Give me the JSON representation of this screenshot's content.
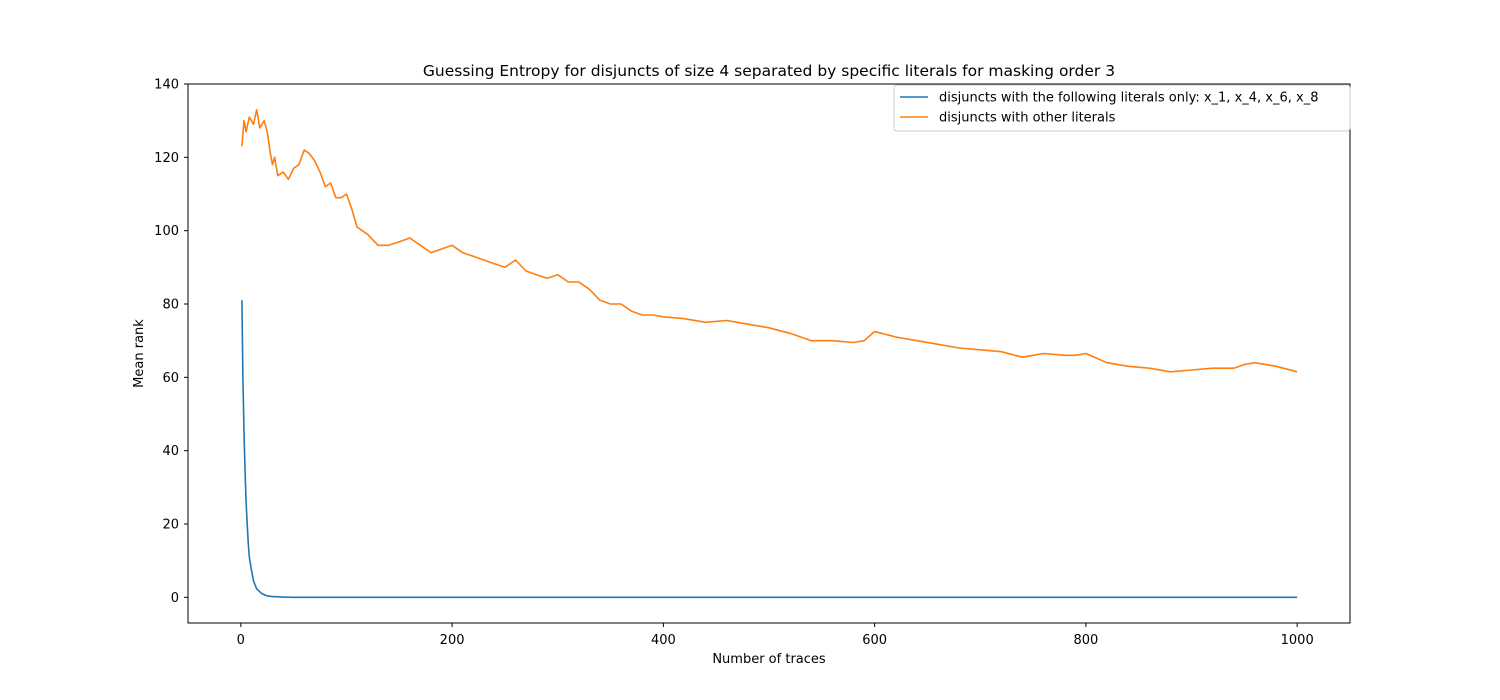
{
  "chart_data": {
    "type": "line",
    "title": "Guessing Entropy for disjuncts of size 4 separated by specific literals for masking order 3",
    "xlabel": "Number of traces",
    "ylabel": "Mean rank",
    "xlim": [
      -50,
      1050
    ],
    "ylim": [
      -7,
      140
    ],
    "xticks": [
      0,
      200,
      400,
      600,
      800,
      1000
    ],
    "yticks": [
      0,
      20,
      40,
      60,
      80,
      100,
      120,
      140
    ],
    "grid": false,
    "legend_position": "top-right",
    "series": [
      {
        "name": "disjuncts with the following literals only: x_1, x_4, x_6, x_8",
        "color": "#1f77b4",
        "x": [
          1,
          2,
          3,
          4,
          5,
          6,
          7,
          8,
          10,
          12,
          15,
          20,
          25,
          30,
          40,
          50,
          100,
          200,
          400,
          600,
          800,
          1000
        ],
        "y": [
          81,
          60,
          45,
          35,
          26,
          20,
          15,
          11,
          7.5,
          4.5,
          2.3,
          1.0,
          0.4,
          0.2,
          0.05,
          0,
          0,
          0,
          0,
          0,
          0,
          0
        ]
      },
      {
        "name": "disjuncts with other literals",
        "color": "#ff7f0e",
        "x": [
          1,
          3,
          5,
          8,
          12,
          15,
          18,
          22,
          25,
          28,
          30,
          32,
          35,
          40,
          45,
          50,
          55,
          60,
          65,
          70,
          75,
          80,
          85,
          90,
          95,
          100,
          105,
          110,
          115,
          120,
          130,
          140,
          150,
          160,
          170,
          180,
          190,
          200,
          210,
          220,
          230,
          240,
          250,
          260,
          270,
          280,
          290,
          300,
          310,
          320,
          330,
          340,
          350,
          360,
          370,
          380,
          390,
          400,
          420,
          440,
          460,
          480,
          500,
          520,
          540,
          560,
          580,
          590,
          600,
          620,
          640,
          660,
          680,
          700,
          720,
          740,
          760,
          780,
          790,
          800,
          820,
          840,
          860,
          880,
          900,
          920,
          940,
          950,
          960,
          980,
          1000
        ],
        "y": [
          123,
          130,
          127,
          131,
          129,
          133,
          128,
          130,
          127,
          121,
          118,
          120,
          115,
          116,
          114,
          117,
          118,
          122,
          121,
          119,
          116,
          112,
          113,
          109,
          109,
          110,
          106,
          101,
          100,
          99,
          96,
          96,
          97,
          98,
          96,
          94,
          95,
          96,
          94,
          93,
          92,
          91,
          90,
          92,
          89,
          88,
          87,
          88,
          86,
          86,
          84,
          81,
          80,
          80,
          78,
          77,
          77,
          76.5,
          76,
          75,
          75.5,
          74.5,
          73.5,
          72,
          70,
          70,
          69.5,
          70,
          72.5,
          71,
          70,
          69,
          68,
          67.5,
          67,
          65.5,
          66.5,
          66,
          66,
          66.5,
          64,
          63,
          62.5,
          61.5,
          62,
          62.5,
          62.5,
          63.5,
          64,
          63,
          61.5
        ]
      }
    ]
  }
}
